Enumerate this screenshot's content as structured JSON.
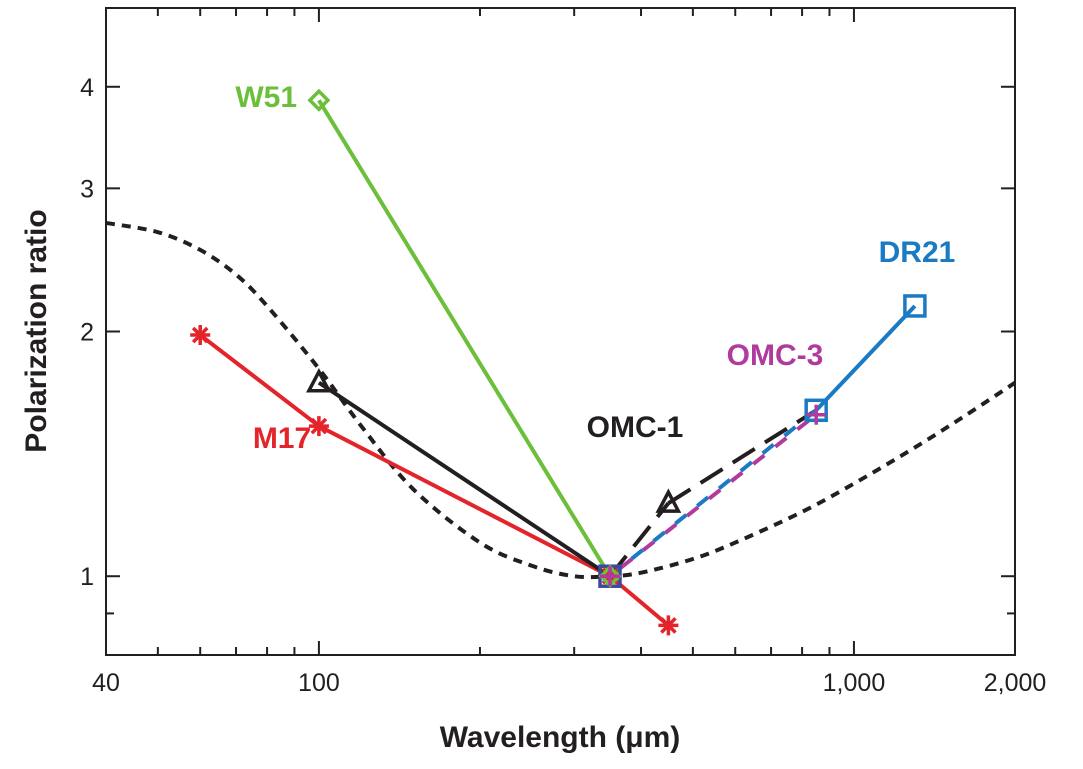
{
  "chart_data": {
    "type": "line",
    "xlabel": "Wavelength (μm)",
    "ylabel": "Polarization ratio",
    "x_scale": "log",
    "y_scale": "log",
    "xlim": [
      40,
      2000
    ],
    "ylim": [
      0.8,
      5
    ],
    "x_ticks": [
      {
        "value": 40,
        "label": "40"
      },
      {
        "value": 100,
        "label": "100"
      },
      {
        "value": 1000,
        "label": "1,000"
      },
      {
        "value": 2000,
        "label": "2,000"
      }
    ],
    "y_ticks": [
      {
        "value": 1,
        "label": "1"
      },
      {
        "value": 2,
        "label": "2"
      },
      {
        "value": 3,
        "label": "3"
      },
      {
        "value": 4,
        "label": "4"
      }
    ],
    "grid": false,
    "series": [
      {
        "name": "W51",
        "color": "#6cbf3a",
        "marker": "diamond",
        "line": "solid",
        "points": [
          {
            "x": 100,
            "y": 3.85
          },
          {
            "x": 350,
            "y": 1.0
          }
        ]
      },
      {
        "name": "M17",
        "color": "#e3242b",
        "marker": "asterisk",
        "line": "solid",
        "points": [
          {
            "x": 60,
            "y": 1.98
          },
          {
            "x": 100,
            "y": 1.53
          },
          {
            "x": 350,
            "y": 1.0
          },
          {
            "x": 450,
            "y": 0.87
          }
        ]
      },
      {
        "name": "OMC-1",
        "color": "#231f20",
        "marker": "triangle",
        "line": "solid-then-dashed",
        "points": [
          {
            "x": 100,
            "y": 1.73
          },
          {
            "x": 350,
            "y": 1.0
          },
          {
            "x": 450,
            "y": 1.23
          },
          {
            "x": 850,
            "y": 1.6
          }
        ]
      },
      {
        "name": "OMC-3",
        "color": "#b03a9e",
        "marker": "plus",
        "line": "dashed",
        "points": [
          {
            "x": 350,
            "y": 1.0
          },
          {
            "x": 850,
            "y": 1.58
          }
        ]
      },
      {
        "name": "DR21",
        "color": "#1b7ac4",
        "marker": "square",
        "line": "dashed-then-solid",
        "points": [
          {
            "x": 350,
            "y": 1.0
          },
          {
            "x": 850,
            "y": 1.6
          },
          {
            "x": 1300,
            "y": 2.15
          }
        ]
      }
    ],
    "model_curve": {
      "color": "#231f20",
      "line": "dotted",
      "points": [
        {
          "x": 40,
          "y": 2.72
        },
        {
          "x": 50,
          "y": 2.65
        },
        {
          "x": 60,
          "y": 2.52
        },
        {
          "x": 70,
          "y": 2.35
        },
        {
          "x": 80,
          "y": 2.15
        },
        {
          "x": 100,
          "y": 1.8
        },
        {
          "x": 120,
          "y": 1.53
        },
        {
          "x": 150,
          "y": 1.28
        },
        {
          "x": 200,
          "y": 1.1
        },
        {
          "x": 250,
          "y": 1.03
        },
        {
          "x": 300,
          "y": 1.0
        },
        {
          "x": 350,
          "y": 1.0
        },
        {
          "x": 400,
          "y": 1.01
        },
        {
          "x": 500,
          "y": 1.05
        },
        {
          "x": 600,
          "y": 1.1
        },
        {
          "x": 800,
          "y": 1.2
        },
        {
          "x": 1000,
          "y": 1.3
        },
        {
          "x": 1300,
          "y": 1.44
        },
        {
          "x": 1600,
          "y": 1.57
        },
        {
          "x": 2000,
          "y": 1.73
        }
      ]
    }
  }
}
